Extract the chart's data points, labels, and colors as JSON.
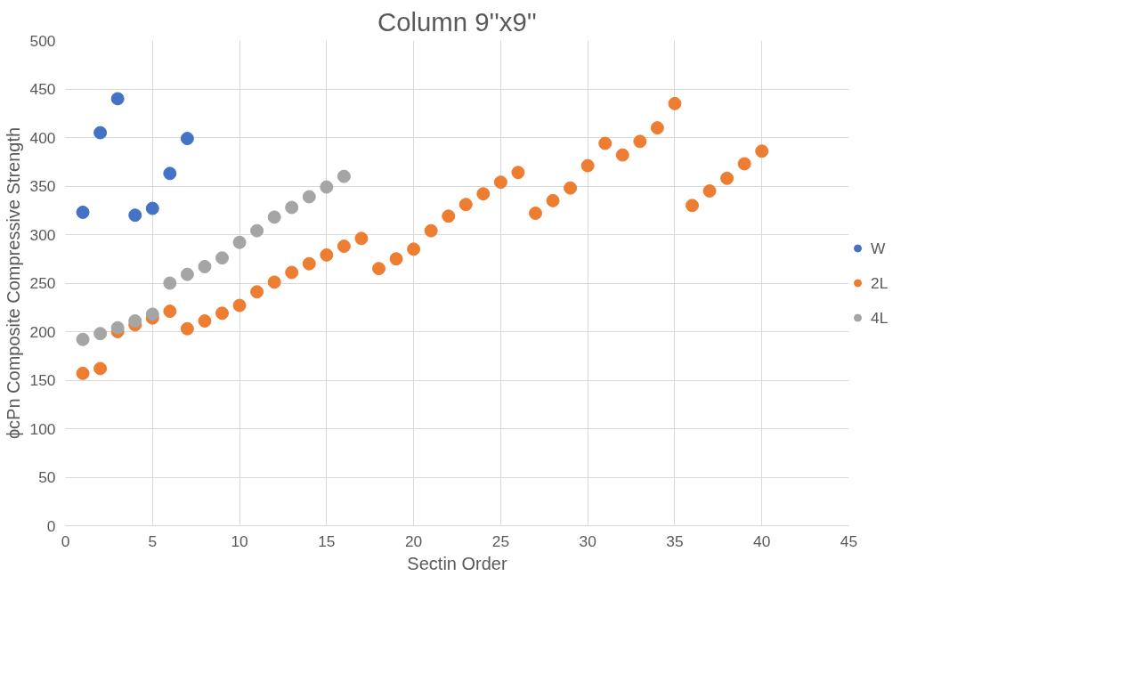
{
  "chart_data": {
    "type": "scatter",
    "title": "Column 9''x9''",
    "xlabel": "Sectin Order",
    "ylabel": "ϕcPn Composite Compressive Strength",
    "xlim": [
      0,
      45
    ],
    "xticks": [
      0,
      5,
      10,
      15,
      20,
      25,
      30,
      35,
      40,
      45
    ],
    "ylim": [
      0,
      500
    ],
    "yticks": [
      0,
      50,
      100,
      150,
      200,
      250,
      300,
      350,
      400,
      450,
      500
    ],
    "grid": true,
    "legend": "right",
    "marker": "circle",
    "series": [
      {
        "name": "W",
        "color": "#4472c4",
        "x": [
          1,
          2,
          3,
          4,
          5,
          6,
          7
        ],
        "values": [
          323,
          405,
          440,
          320,
          327,
          363,
          399
        ]
      },
      {
        "name": "2L",
        "color": "#ed7d31",
        "x": [
          1,
          2,
          3,
          4,
          5,
          6,
          7,
          8,
          9,
          10,
          11,
          12,
          13,
          14,
          15,
          16,
          17,
          18,
          19,
          20,
          21,
          22,
          23,
          24,
          25,
          26,
          27,
          28,
          29,
          30,
          31,
          32,
          33,
          34,
          35,
          36,
          37,
          38,
          39,
          40
        ],
        "values": [
          157,
          162,
          200,
          207,
          214,
          221,
          203,
          211,
          219,
          227,
          241,
          251,
          261,
          270,
          279,
          288,
          296,
          265,
          275,
          285,
          304,
          319,
          331,
          342,
          354,
          364,
          322,
          335,
          348,
          371,
          394,
          382,
          396,
          410,
          435,
          330,
          345,
          358,
          373,
          386
        ]
      },
      {
        "name": "4L",
        "color": "#a5a5a5",
        "x": [
          1,
          2,
          3,
          4,
          5,
          6,
          7,
          8,
          9,
          10,
          11,
          12,
          13,
          14,
          15,
          16
        ],
        "values": [
          192,
          198,
          204,
          211,
          218,
          250,
          259,
          267,
          276,
          292,
          304,
          318,
          328,
          339,
          349,
          360
        ]
      }
    ]
  }
}
